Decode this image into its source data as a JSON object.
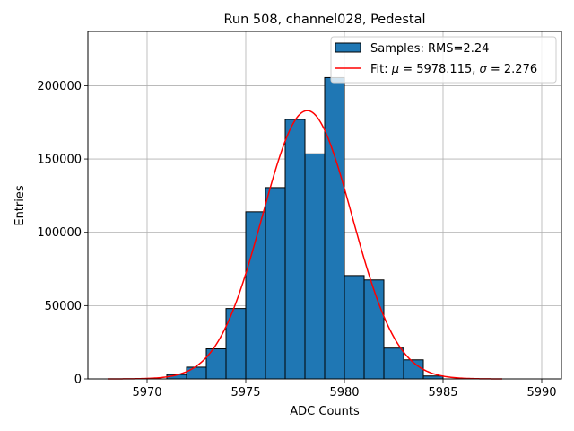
{
  "chart_data": {
    "type": "bar",
    "title": "Run 508, channel028, Pedestal",
    "xlabel": "ADC Counts",
    "ylabel": "Entries",
    "xlim": [
      5967,
      5991
    ],
    "ylim": [
      0,
      237000
    ],
    "xticks": [
      5970,
      5975,
      5980,
      5985,
      5990
    ],
    "yticks": [
      0,
      50000,
      100000,
      150000,
      200000
    ],
    "grid": true,
    "legend_position": "top-right",
    "bar_color": "#1f77b4",
    "fit_color": "#ff0000",
    "histogram": {
      "name": "Samples: RMS=2.24",
      "bin_width": 1,
      "bin_starts": [
        5971,
        5972,
        5973,
        5974,
        5975,
        5976,
        5977,
        5978,
        5979,
        5980,
        5981,
        5982,
        5983,
        5984
      ],
      "values": [
        3000,
        8000,
        20500,
        48000,
        114000,
        130500,
        177000,
        153500,
        205500,
        70500,
        67500,
        21000,
        13000,
        2000
      ]
    },
    "fit": {
      "label_prefix": "Fit: ",
      "label_mu_symbol": "μ",
      "label_mu_value": " = 5978.115, ",
      "label_sigma_symbol": "σ",
      "label_sigma_value": " = 2.276",
      "mu": 5978.115,
      "sigma": 2.276,
      "amplitude": 183000,
      "x_range": [
        5968,
        5988
      ]
    }
  }
}
